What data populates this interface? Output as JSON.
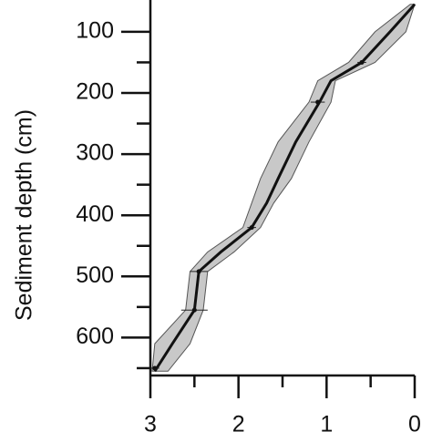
{
  "chart_data": {
    "type": "age-depth",
    "y_label": "Sediment depth (cm)",
    "xlim": [
      3,
      0
    ],
    "xticks": [
      3,
      2,
      1,
      0
    ],
    "xminor": [
      2.5,
      1.5,
      0.5
    ],
    "ylim": [
      48,
      662
    ],
    "yticks": [
      100,
      200,
      300,
      400,
      500,
      600
    ],
    "yminor": [
      150,
      250,
      350,
      450,
      550,
      650
    ],
    "depth": [
      55,
      100,
      150,
      180,
      215,
      280,
      340,
      380,
      420,
      460,
      492,
      555,
      610,
      655
    ],
    "median_age": [
      0,
      0.28,
      0.6,
      0.95,
      1.08,
      1.35,
      1.55,
      1.68,
      1.85,
      2.2,
      2.45,
      2.5,
      2.75,
      2.95
    ],
    "min_age": [
      0,
      0.1,
      0.45,
      0.9,
      0.95,
      1.2,
      1.4,
      1.6,
      1.75,
      2.05,
      2.35,
      2.4,
      2.55,
      2.8
    ],
    "max_age": [
      0.05,
      0.45,
      0.75,
      1.1,
      1.2,
      1.55,
      1.75,
      1.85,
      1.95,
      2.35,
      2.55,
      2.6,
      2.95,
      2.98
    ],
    "envelope_color": "#c8c8c8",
    "line_color": "#111111",
    "dates": {
      "depth": [
        150,
        215,
        420,
        492,
        555,
        650
      ],
      "age": [
        0.6,
        1.1,
        1.85,
        2.45,
        2.5,
        2.95
      ],
      "error": [
        0.05,
        0.08,
        0.05,
        0.1,
        0.15,
        0.05
      ]
    }
  }
}
